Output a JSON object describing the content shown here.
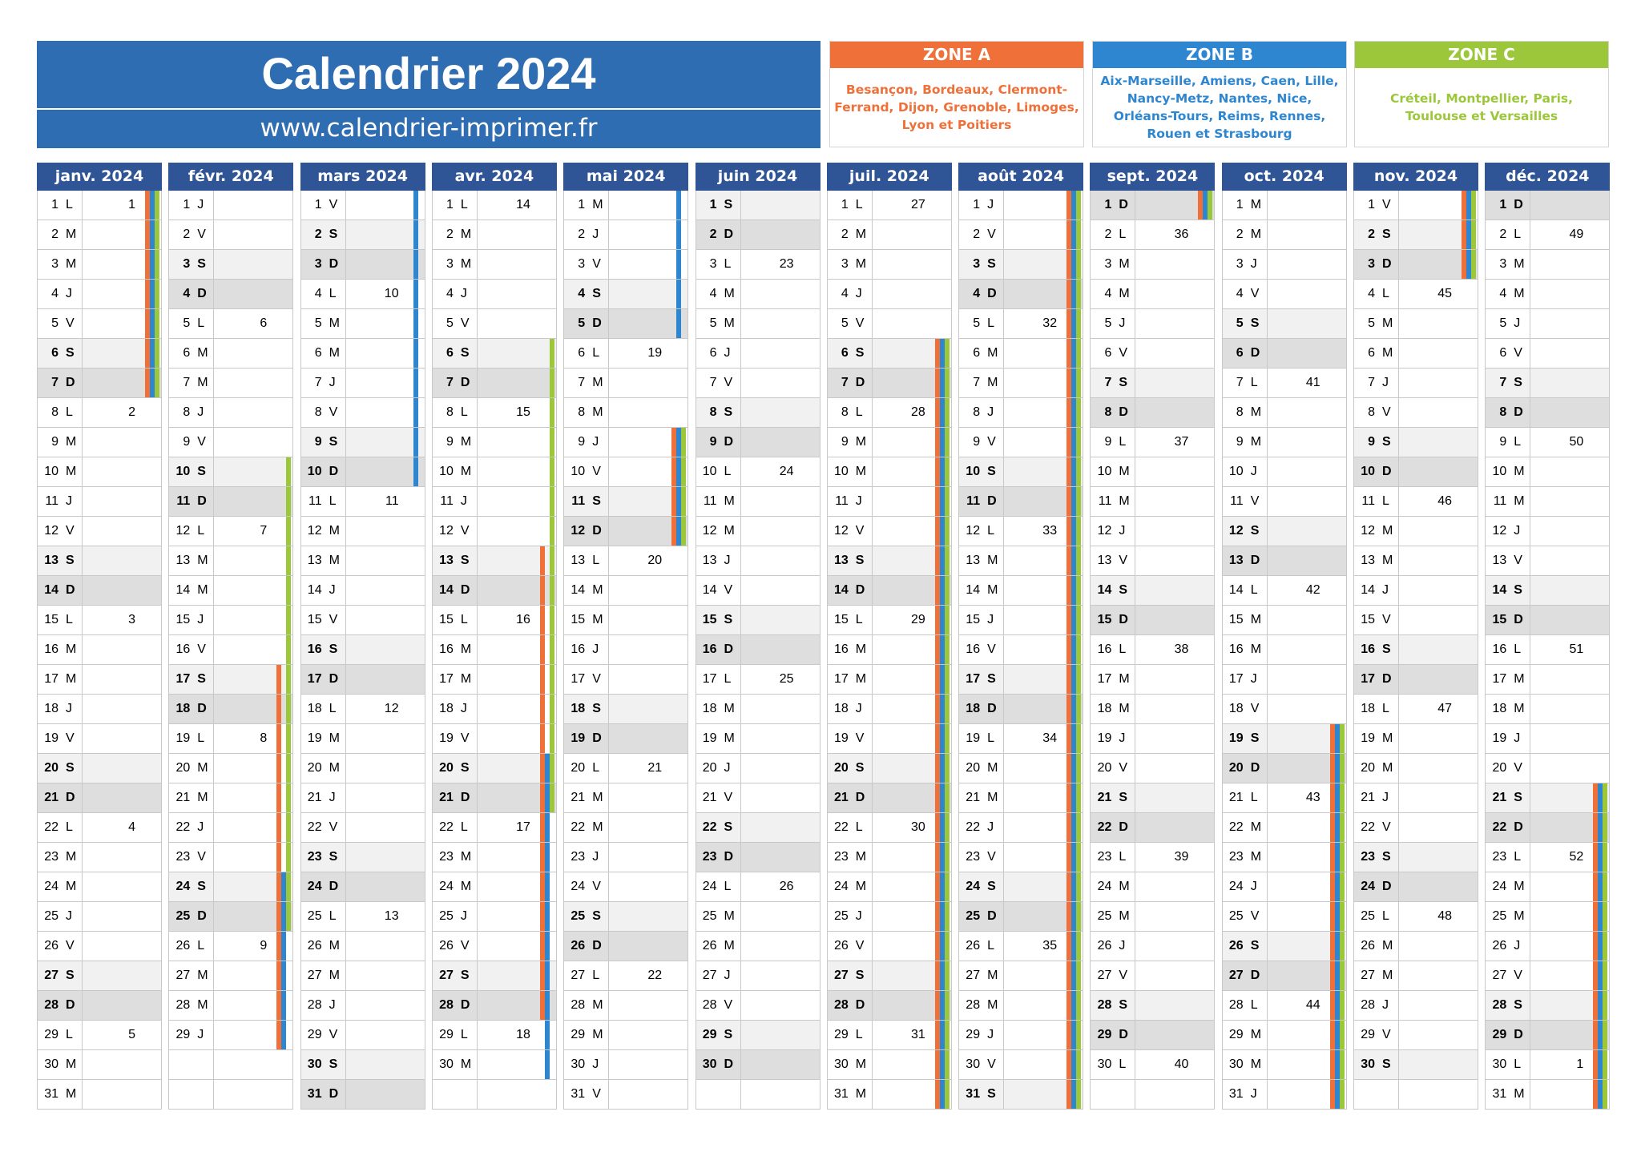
{
  "header": {
    "title": "Calendrier 2024",
    "url": "www.calendrier-imprimer.fr"
  },
  "zones": [
    {
      "name": "ZONE A",
      "color": "#ef7039",
      "cities": "Besançon, Bordeaux, Clermont-Ferrand, Dijon, Grenoble, Limoges, Lyon et Poitiers"
    },
    {
      "name": "ZONE B",
      "color": "#2e86d0",
      "cities": "Aix-Marseille, Amiens, Caen, Lille, Nancy-Metz, Nantes, Nice, Orléans-Tours, Reims, Rennes, Rouen et Strasbourg"
    },
    {
      "name": "ZONE C",
      "color": "#9cc73b",
      "cities": "Créteil, Montpellier, Paris, Toulouse et Versailles"
    }
  ],
  "year": 2024,
  "day_letters": [
    "D",
    "L",
    "M",
    "M",
    "J",
    "V",
    "S"
  ],
  "months": [
    {
      "name": "janv. 2024",
      "days": 31
    },
    {
      "name": "févr. 2024",
      "days": 29
    },
    {
      "name": "mars 2024",
      "days": 31
    },
    {
      "name": "avr. 2024",
      "days": 30
    },
    {
      "name": "mai 2024",
      "days": 31
    },
    {
      "name": "juin 2024",
      "days": 30
    },
    {
      "name": "juil. 2024",
      "days": 31
    },
    {
      "name": "août 2024",
      "days": 31
    },
    {
      "name": "sept. 2024",
      "days": 30
    },
    {
      "name": "oct. 2024",
      "days": 31
    },
    {
      "name": "nov. 2024",
      "days": 30
    },
    {
      "name": "déc. 2024",
      "days": 31
    }
  ],
  "holidays": {
    "A": [
      [
        "01-01",
        "01-07"
      ],
      [
        "02-17",
        "02-29"
      ],
      [
        "04-13",
        "04-28"
      ],
      [
        "05-09",
        "05-12"
      ],
      [
        "07-06",
        "09-01"
      ],
      [
        "10-19",
        "11-03"
      ],
      [
        "12-21",
        "12-31"
      ]
    ],
    "B": [
      [
        "01-01",
        "01-07"
      ],
      [
        "02-24",
        "02-29"
      ],
      [
        "03-01",
        "03-10"
      ],
      [
        "04-20",
        "04-30"
      ],
      [
        "05-01",
        "05-05"
      ],
      [
        "05-09",
        "05-12"
      ],
      [
        "07-06",
        "09-01"
      ],
      [
        "10-19",
        "11-03"
      ],
      [
        "12-21",
        "12-31"
      ]
    ],
    "C": [
      [
        "01-01",
        "01-07"
      ],
      [
        "02-10",
        "02-25"
      ],
      [
        "04-06",
        "04-21"
      ],
      [
        "05-09",
        "05-12"
      ],
      [
        "07-06",
        "09-01"
      ],
      [
        "10-19",
        "11-03"
      ],
      [
        "12-21",
        "12-31"
      ]
    ]
  }
}
